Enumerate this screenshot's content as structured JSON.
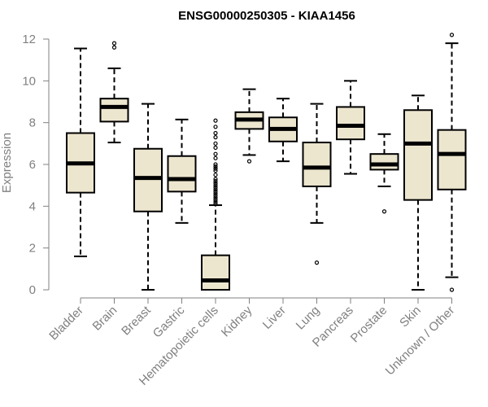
{
  "chart_data": {
    "type": "boxplot",
    "title": "ENSG00000250305 - KIAA1456",
    "xlabel": "",
    "ylabel": "Expression",
    "ylim": [
      0,
      12
    ],
    "yticks": [
      0,
      2,
      4,
      6,
      8,
      10,
      12
    ],
    "grid": false,
    "box_fill": "#ede6cf",
    "line_color": "#000000",
    "axis_color": "#808080",
    "categories": [
      "Bladder",
      "Brain",
      "Breast",
      "Gastric",
      "Hematopoietic cells",
      "Kidney",
      "Liver",
      "Lung",
      "Pancreas",
      "Prostate",
      "Skin",
      "Unknown / Other"
    ],
    "boxes": [
      {
        "whisker_low": 1.6,
        "q1": 4.65,
        "median": 6.05,
        "q3": 7.5,
        "whisker_high": 11.55,
        "outliers": []
      },
      {
        "whisker_low": 7.05,
        "q1": 8.05,
        "median": 8.75,
        "q3": 9.15,
        "whisker_high": 10.6,
        "outliers": [
          11.6,
          11.8
        ]
      },
      {
        "whisker_low": 0.0,
        "q1": 3.75,
        "median": 5.35,
        "q3": 6.75,
        "whisker_high": 8.9,
        "outliers": []
      },
      {
        "whisker_low": 3.2,
        "q1": 4.7,
        "median": 5.3,
        "q3": 6.4,
        "whisker_high": 8.15,
        "outliers": []
      },
      {
        "whisker_low": 0.0,
        "q1": 0.0,
        "median": 0.45,
        "q3": 1.65,
        "whisker_high": 4.05,
        "outliers": [
          4.1,
          4.2,
          4.3,
          4.4,
          4.5,
          4.6,
          4.7,
          4.8,
          4.9,
          5.0,
          5.1,
          5.2,
          5.3,
          5.5,
          5.7,
          5.8,
          5.9,
          6.0,
          6.3,
          6.5,
          6.8,
          7.0,
          7.3,
          7.5,
          7.8,
          8.1
        ]
      },
      {
        "whisker_low": 6.45,
        "q1": 7.7,
        "median": 8.15,
        "q3": 8.5,
        "whisker_high": 9.6,
        "outliers": [
          6.15
        ]
      },
      {
        "whisker_low": 6.15,
        "q1": 7.1,
        "median": 7.7,
        "q3": 8.25,
        "whisker_high": 9.15,
        "outliers": []
      },
      {
        "whisker_low": 3.2,
        "q1": 4.95,
        "median": 5.85,
        "q3": 7.05,
        "whisker_high": 8.9,
        "outliers": [
          1.3
        ]
      },
      {
        "whisker_low": 5.55,
        "q1": 7.2,
        "median": 7.85,
        "q3": 8.75,
        "whisker_high": 10.0,
        "outliers": []
      },
      {
        "whisker_low": 4.95,
        "q1": 5.75,
        "median": 6.0,
        "q3": 6.5,
        "whisker_high": 7.45,
        "outliers": [
          3.75
        ]
      },
      {
        "whisker_low": 0.0,
        "q1": 4.3,
        "median": 7.0,
        "q3": 8.6,
        "whisker_high": 9.3,
        "outliers": []
      },
      {
        "whisker_low": 0.6,
        "q1": 4.8,
        "median": 6.5,
        "q3": 7.65,
        "whisker_high": 11.8,
        "outliers": [
          0.0,
          12.2
        ]
      }
    ]
  }
}
